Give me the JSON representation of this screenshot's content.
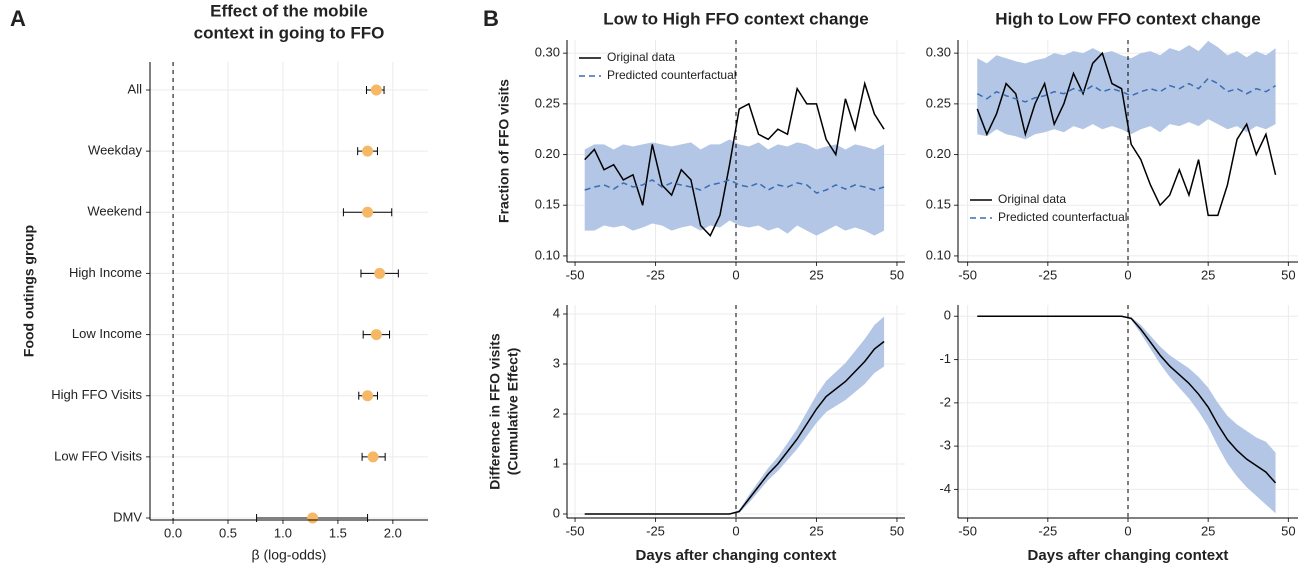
{
  "chart_data": [
    {
      "type": "forest",
      "panel": "A",
      "title": [
        "Effect of the mobile",
        "context in going to FFO"
      ],
      "y_label": "Food outings group",
      "x_label": "β (log-odds)",
      "categories": [
        "All",
        "Weekday",
        "Weekend",
        "High Income",
        "Low Income",
        "High FFO Visits",
        "Low FFO Visits",
        "DMV"
      ],
      "values": [
        1.85,
        1.77,
        1.77,
        1.88,
        1.85,
        1.77,
        1.82,
        1.27
      ],
      "lower": [
        1.76,
        1.68,
        1.55,
        1.71,
        1.73,
        1.69,
        1.72,
        0.76
      ],
      "upper": [
        1.92,
        1.86,
        1.99,
        2.05,
        1.97,
        1.86,
        1.93,
        1.77
      ],
      "color": "#f7b866",
      "reference_line": 0,
      "xlim": [
        -0.21,
        2.32
      ],
      "xticks": [
        {
          "value": 0,
          "label": "0.0"
        },
        0.5,
        {
          "value": 1,
          "label": "1.0"
        },
        1.5,
        {
          "value": 2,
          "label": "2.0"
        }
      ],
      "grid": true
    },
    {
      "type": "line",
      "panel": "B",
      "title": "Low to High FFO context change",
      "y_label": [
        "Fraction of FFO visits"
      ],
      "x": [
        -47,
        -44,
        -41,
        -38,
        -35,
        -32,
        -29,
        -26,
        -23,
        -20,
        -17,
        -14,
        -11,
        -8,
        -5,
        -2,
        1,
        4,
        7,
        10,
        13,
        16,
        19,
        22,
        25,
        28,
        31,
        34,
        37,
        40,
        43,
        46
      ],
      "series": [
        {
          "name": "Original data",
          "color": "#000000",
          "dashed": false,
          "values": [
            0.195,
            0.205,
            0.185,
            0.19,
            0.175,
            0.18,
            0.15,
            0.21,
            0.17,
            0.16,
            0.185,
            0.175,
            0.13,
            0.12,
            0.14,
            0.19,
            0.245,
            0.25,
            0.22,
            0.215,
            0.225,
            0.22,
            0.265,
            0.25,
            0.25,
            0.215,
            0.2,
            0.255,
            0.225,
            0.27,
            0.24,
            0.225
          ]
        },
        {
          "name": "Predicted counterfactual",
          "color": "#3a6db5",
          "dashed": true,
          "values": [
            0.165,
            0.168,
            0.17,
            0.166,
            0.172,
            0.168,
            0.17,
            0.175,
            0.168,
            0.172,
            0.17,
            0.168,
            0.165,
            0.17,
            0.172,
            0.175,
            0.17,
            0.168,
            0.172,
            0.165,
            0.17,
            0.168,
            0.172,
            0.17,
            0.162,
            0.165,
            0.17,
            0.166,
            0.17,
            0.168,
            0.165,
            0.168
          ]
        }
      ],
      "lower": [
        0.125,
        0.125,
        0.13,
        0.128,
        0.13,
        0.125,
        0.128,
        0.132,
        0.13,
        0.125,
        0.128,
        0.13,
        0.125,
        0.13,
        0.128,
        0.135,
        0.13,
        0.128,
        0.13,
        0.125,
        0.128,
        0.122,
        0.13,
        0.125,
        0.12,
        0.125,
        0.13,
        0.125,
        0.128,
        0.125,
        0.12,
        0.125
      ],
      "upper": [
        0.205,
        0.21,
        0.21,
        0.205,
        0.21,
        0.208,
        0.21,
        0.212,
        0.21,
        0.208,
        0.21,
        0.212,
        0.205,
        0.21,
        0.21,
        0.215,
        0.21,
        0.208,
        0.212,
        0.205,
        0.21,
        0.208,
        0.212,
        0.21,
        0.205,
        0.208,
        0.21,
        0.205,
        0.21,
        0.208,
        0.205,
        0.21
      ],
      "band_color": "#b3c6e5",
      "reference_line": 0,
      "xlim": [
        -52.5,
        52.5
      ],
      "xticks": [
        -50,
        -25,
        0,
        25,
        50
      ],
      "ylim": [
        0.094,
        0.313
      ],
      "yticks": [
        {
          "value": 0.1,
          "label": "0.10"
        },
        0.15,
        {
          "value": 0.2,
          "label": "0.20"
        },
        0.25,
        {
          "value": 0.3,
          "label": "0.30"
        }
      ],
      "legend": "top-left",
      "grid": true
    },
    {
      "type": "line",
      "title": "High to Low FFO context change",
      "x": [
        -47,
        -44,
        -41,
        -38,
        -35,
        -32,
        -29,
        -26,
        -23,
        -20,
        -17,
        -14,
        -11,
        -8,
        -5,
        -2,
        1,
        4,
        7,
        10,
        13,
        16,
        19,
        22,
        25,
        28,
        31,
        34,
        37,
        40,
        43,
        46
      ],
      "series": [
        {
          "name": "Original data",
          "color": "#000000",
          "dashed": false,
          "values": [
            0.245,
            0.22,
            0.24,
            0.27,
            0.26,
            0.22,
            0.25,
            0.27,
            0.23,
            0.25,
            0.28,
            0.26,
            0.29,
            0.3,
            0.27,
            0.265,
            0.21,
            0.195,
            0.17,
            0.15,
            0.16,
            0.185,
            0.16,
            0.195,
            0.14,
            0.14,
            0.17,
            0.215,
            0.23,
            0.2,
            0.22,
            0.18
          ]
        },
        {
          "name": "Predicted counterfactual",
          "color": "#3a6db5",
          "dashed": true,
          "values": [
            0.26,
            0.255,
            0.262,
            0.258,
            0.255,
            0.252,
            0.256,
            0.258,
            0.262,
            0.26,
            0.265,
            0.262,
            0.268,
            0.262,
            0.265,
            0.262,
            0.258,
            0.262,
            0.265,
            0.262,
            0.268,
            0.265,
            0.27,
            0.265,
            0.275,
            0.27,
            0.262,
            0.265,
            0.26,
            0.265,
            0.262,
            0.268
          ]
        }
      ],
      "lower": [
        0.22,
        0.218,
        0.225,
        0.22,
        0.218,
        0.215,
        0.22,
        0.222,
        0.225,
        0.222,
        0.228,
        0.225,
        0.23,
        0.225,
        0.228,
        0.225,
        0.22,
        0.225,
        0.228,
        0.222,
        0.23,
        0.228,
        0.232,
        0.228,
        0.235,
        0.23,
        0.225,
        0.228,
        0.222,
        0.228,
        0.225,
        0.23
      ],
      "upper": [
        0.295,
        0.29,
        0.298,
        0.295,
        0.292,
        0.29,
        0.293,
        0.295,
        0.3,
        0.298,
        0.302,
        0.3,
        0.305,
        0.3,
        0.302,
        0.298,
        0.295,
        0.3,
        0.302,
        0.298,
        0.305,
        0.302,
        0.308,
        0.302,
        0.312,
        0.306,
        0.298,
        0.302,
        0.296,
        0.302,
        0.298,
        0.305
      ],
      "band_color": "#b3c6e5",
      "reference_line": 0,
      "xlim": [
        -53,
        53
      ],
      "xticks": [
        -50,
        -25,
        0,
        25,
        50
      ],
      "ylim": [
        0.094,
        0.313
      ],
      "yticks": [
        {
          "value": 0.1,
          "label": "0.10"
        },
        0.15,
        {
          "value": 0.2,
          "label": "0.20"
        },
        0.25,
        {
          "value": 0.3,
          "label": "0.30"
        }
      ],
      "legend": "bottom-left",
      "grid": true
    },
    {
      "type": "line",
      "y_label": [
        "Difference in FFO visits",
        "(Cumulative Effect)"
      ],
      "x_label": "Days after changing context",
      "x": [
        -47,
        -44,
        -41,
        -38,
        -35,
        -32,
        -29,
        -26,
        -23,
        -20,
        -17,
        -14,
        -11,
        -8,
        -5,
        -2,
        1,
        4,
        7,
        10,
        13,
        16,
        19,
        22,
        25,
        28,
        31,
        34,
        37,
        40,
        43,
        46
      ],
      "values": [
        0,
        0,
        0,
        0,
        0,
        0,
        0,
        0,
        0,
        0,
        0,
        0,
        0,
        0,
        0,
        0,
        0.05,
        0.3,
        0.55,
        0.8,
        1.0,
        1.25,
        1.5,
        1.8,
        2.1,
        2.35,
        2.5,
        2.65,
        2.85,
        3.05,
        3.3,
        3.45
      ],
      "lower": [
        0,
        0,
        0,
        0,
        0,
        0,
        0,
        0,
        0,
        0,
        0,
        0,
        0,
        0,
        0,
        0,
        0.02,
        0.22,
        0.45,
        0.68,
        0.86,
        1.08,
        1.3,
        1.56,
        1.82,
        2.04,
        2.16,
        2.28,
        2.44,
        2.6,
        2.82,
        2.95
      ],
      "upper": [
        0,
        0,
        0,
        0,
        0,
        0,
        0,
        0,
        0,
        0,
        0,
        0,
        0,
        0,
        0,
        0,
        0.08,
        0.38,
        0.65,
        0.92,
        1.14,
        1.42,
        1.7,
        2.04,
        2.38,
        2.66,
        2.84,
        3.02,
        3.26,
        3.5,
        3.78,
        3.95
      ],
      "color": "#000000",
      "band_color": "#b3c6e5",
      "reference_line": 0,
      "xlim": [
        -52.5,
        52.5
      ],
      "xticks": [
        -50,
        -25,
        0,
        25,
        50
      ],
      "ylim": [
        -0.08,
        4.18
      ],
      "yticks": [
        0,
        1,
        2,
        3,
        4
      ],
      "grid": true
    },
    {
      "type": "line",
      "x_label": "Days after changing context",
      "x": [
        -47,
        -44,
        -41,
        -38,
        -35,
        -32,
        -29,
        -26,
        -23,
        -20,
        -17,
        -14,
        -11,
        -8,
        -5,
        -2,
        1,
        4,
        7,
        10,
        13,
        16,
        19,
        22,
        25,
        28,
        31,
        34,
        37,
        40,
        43,
        46
      ],
      "values": [
        0,
        0,
        0,
        0,
        0,
        0,
        0,
        0,
        0,
        0,
        0,
        0,
        0,
        0,
        0,
        0,
        -0.05,
        -0.3,
        -0.6,
        -0.9,
        -1.15,
        -1.35,
        -1.55,
        -1.8,
        -2.1,
        -2.5,
        -2.85,
        -3.1,
        -3.3,
        -3.45,
        -3.6,
        -3.85
      ],
      "lower": [
        0,
        0,
        0,
        0,
        0,
        0,
        0,
        0,
        0,
        0,
        0,
        0,
        0,
        0,
        0,
        0,
        -0.08,
        -0.4,
        -0.75,
        -1.1,
        -1.4,
        -1.65,
        -1.9,
        -2.2,
        -2.55,
        -3.0,
        -3.4,
        -3.7,
        -3.95,
        -4.15,
        -4.35,
        -4.55
      ],
      "upper": [
        0,
        0,
        0,
        0,
        0,
        0,
        0,
        0,
        0,
        0,
        0,
        0,
        0,
        0,
        0,
        0,
        -0.02,
        -0.2,
        -0.45,
        -0.7,
        -0.9,
        -1.05,
        -1.2,
        -1.4,
        -1.65,
        -2.0,
        -2.3,
        -2.5,
        -2.65,
        -2.8,
        -2.9,
        -3.15
      ],
      "color": "#000000",
      "band_color": "#b3c6e5",
      "reference_line": 0,
      "xlim": [
        -53,
        53
      ],
      "xticks": [
        -50,
        -25,
        0,
        25,
        50
      ],
      "ylim": [
        -4.66,
        0.26
      ],
      "yticks": [
        -4,
        -3,
        -2,
        -1,
        0
      ],
      "grid": true
    }
  ]
}
